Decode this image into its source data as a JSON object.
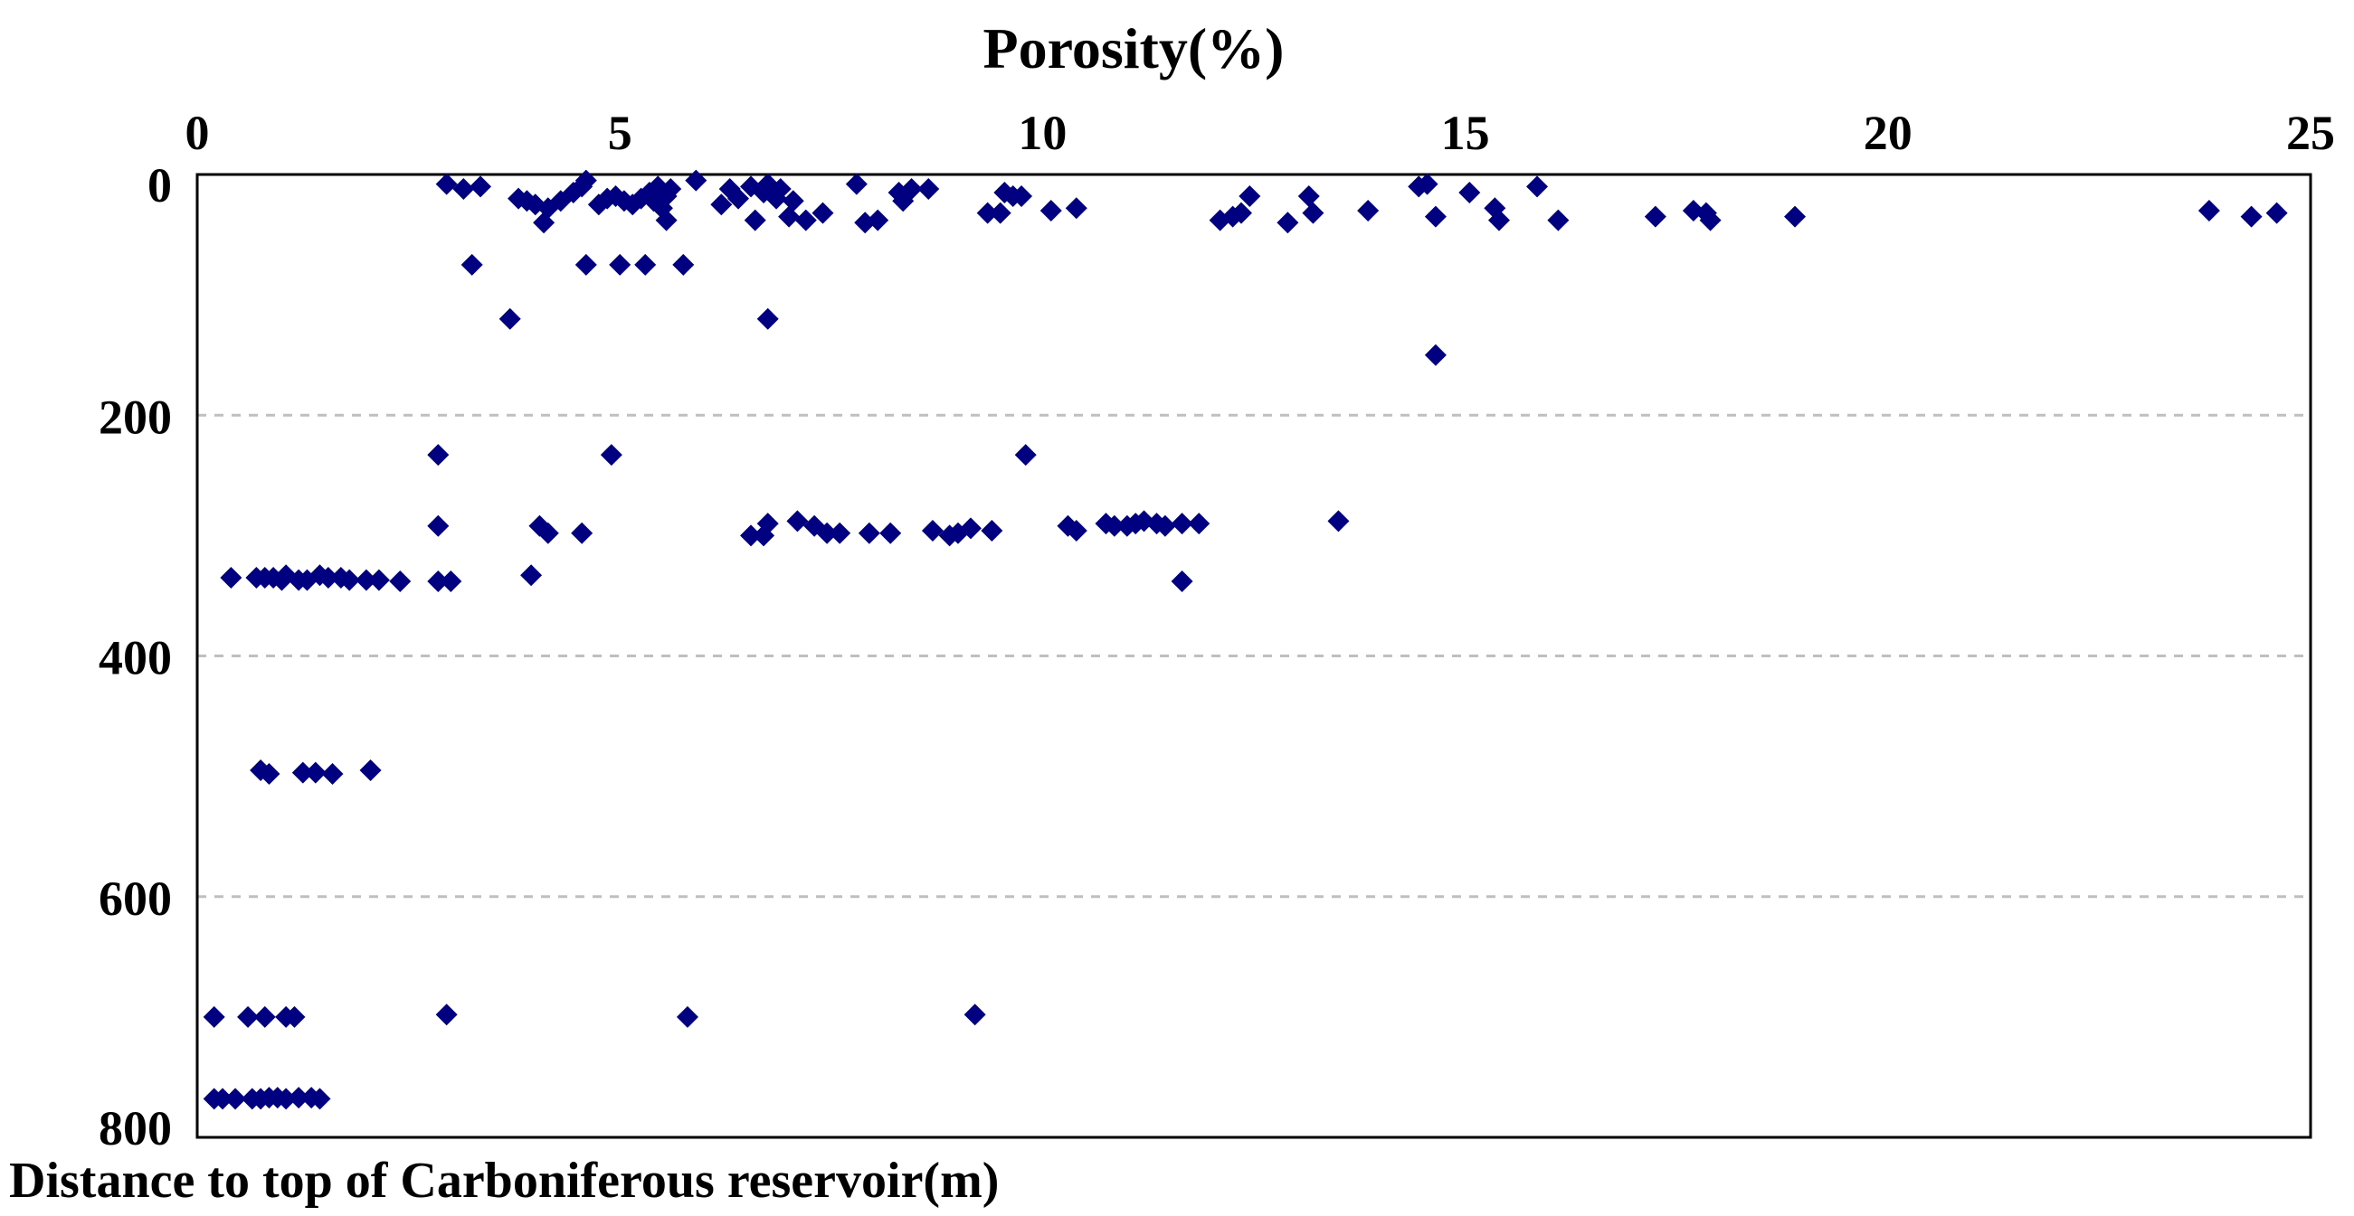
{
  "chart_data": {
    "type": "scatter",
    "title": "Porosity(%)",
    "xlabel": "Porosity(%)",
    "ylabel": "Distance to top of Carboniferous reservoir(m)",
    "xlim": [
      0,
      25
    ],
    "ylim": [
      0,
      800
    ],
    "x_axis_position": "top",
    "y_inverted": true,
    "x_ticks": [
      "0",
      "5",
      "10",
      "15",
      "20",
      "25"
    ],
    "y_ticks": [
      "200",
      "400",
      "600",
      "800"
    ],
    "y_tick_values": [
      200,
      400,
      600,
      800
    ],
    "x_tick_values": [
      0,
      5,
      10,
      15,
      20,
      25
    ],
    "grid": "horizontal dashed",
    "marker_color": "#000080",
    "series": [
      {
        "name": "samples",
        "points": [
          [
            2.95,
            8
          ],
          [
            3.15,
            12
          ],
          [
            3.35,
            10
          ],
          [
            3.8,
            20
          ],
          [
            3.9,
            22
          ],
          [
            4.0,
            25
          ],
          [
            4.15,
            28
          ],
          [
            4.1,
            40
          ],
          [
            4.3,
            22
          ],
          [
            4.45,
            15
          ],
          [
            4.55,
            10
          ],
          [
            4.6,
            5
          ],
          [
            4.75,
            25
          ],
          [
            4.85,
            20
          ],
          [
            4.95,
            18
          ],
          [
            5.05,
            22
          ],
          [
            5.15,
            25
          ],
          [
            5.25,
            20
          ],
          [
            5.35,
            15
          ],
          [
            5.4,
            22
          ],
          [
            5.45,
            10
          ],
          [
            5.5,
            28
          ],
          [
            5.55,
            18
          ],
          [
            5.6,
            12
          ],
          [
            5.55,
            38
          ],
          [
            5.9,
            5
          ],
          [
            6.2,
            25
          ],
          [
            6.3,
            12
          ],
          [
            6.4,
            20
          ],
          [
            6.55,
            10
          ],
          [
            6.6,
            38
          ],
          [
            6.7,
            15
          ],
          [
            6.75,
            8
          ],
          [
            6.85,
            20
          ],
          [
            6.9,
            12
          ],
          [
            7.0,
            35
          ],
          [
            7.05,
            22
          ],
          [
            7.2,
            38
          ],
          [
            7.4,
            32
          ],
          [
            7.8,
            8
          ],
          [
            7.9,
            40
          ],
          [
            8.05,
            38
          ],
          [
            8.3,
            15
          ],
          [
            8.35,
            22
          ],
          [
            8.45,
            12
          ],
          [
            8.65,
            12
          ],
          [
            9.35,
            32
          ],
          [
            9.5,
            32
          ],
          [
            9.55,
            15
          ],
          [
            9.65,
            18
          ],
          [
            9.75,
            18
          ],
          [
            10.1,
            30
          ],
          [
            10.4,
            28
          ],
          [
            12.1,
            38
          ],
          [
            12.25,
            35
          ],
          [
            12.35,
            32
          ],
          [
            12.45,
            18
          ],
          [
            12.9,
            40
          ],
          [
            13.15,
            18
          ],
          [
            13.2,
            32
          ],
          [
            13.85,
            30
          ],
          [
            14.45,
            10
          ],
          [
            14.55,
            8
          ],
          [
            14.65,
            35
          ],
          [
            15.05,
            15
          ],
          [
            15.35,
            28
          ],
          [
            15.4,
            38
          ],
          [
            15.85,
            10
          ],
          [
            16.1,
            38
          ],
          [
            17.25,
            35
          ],
          [
            17.7,
            30
          ],
          [
            17.85,
            32
          ],
          [
            17.9,
            38
          ],
          [
            18.9,
            35
          ],
          [
            23.8,
            30
          ],
          [
            24.3,
            35
          ],
          [
            24.6,
            32
          ],
          [
            3.25,
            75
          ],
          [
            4.6,
            75
          ],
          [
            5.0,
            75
          ],
          [
            5.3,
            75
          ],
          [
            5.75,
            75
          ],
          [
            3.7,
            120
          ],
          [
            6.75,
            120
          ],
          [
            14.65,
            150
          ],
          [
            2.85,
            233
          ],
          [
            4.9,
            233
          ],
          [
            9.8,
            233
          ],
          [
            2.85,
            292
          ],
          [
            4.05,
            292
          ],
          [
            4.15,
            298
          ],
          [
            4.55,
            298
          ],
          [
            6.55,
            300
          ],
          [
            6.7,
            300
          ],
          [
            6.75,
            290
          ],
          [
            7.1,
            288
          ],
          [
            7.3,
            292
          ],
          [
            7.45,
            298
          ],
          [
            7.6,
            298
          ],
          [
            7.95,
            298
          ],
          [
            8.2,
            298
          ],
          [
            8.7,
            296
          ],
          [
            8.9,
            300
          ],
          [
            9.0,
            298
          ],
          [
            9.15,
            294
          ],
          [
            9.4,
            296
          ],
          [
            10.3,
            292
          ],
          [
            10.4,
            296
          ],
          [
            10.75,
            290
          ],
          [
            10.85,
            292
          ],
          [
            11.0,
            292
          ],
          [
            11.1,
            290
          ],
          [
            11.2,
            288
          ],
          [
            11.35,
            290
          ],
          [
            11.45,
            292
          ],
          [
            11.65,
            290
          ],
          [
            11.85,
            290
          ],
          [
            13.5,
            288
          ],
          [
            11.65,
            338
          ],
          [
            0.4,
            335
          ],
          [
            0.7,
            335
          ],
          [
            0.8,
            335
          ],
          [
            0.9,
            335
          ],
          [
            1.0,
            337
          ],
          [
            1.05,
            333
          ],
          [
            1.2,
            337
          ],
          [
            1.3,
            337
          ],
          [
            1.45,
            333
          ],
          [
            1.55,
            335
          ],
          [
            1.7,
            335
          ],
          [
            1.8,
            337
          ],
          [
            2.0,
            337
          ],
          [
            2.15,
            337
          ],
          [
            2.4,
            338
          ],
          [
            2.85,
            338
          ],
          [
            3.0,
            338
          ],
          [
            3.95,
            333
          ],
          [
            0.75,
            495
          ],
          [
            0.85,
            498
          ],
          [
            1.25,
            497
          ],
          [
            1.4,
            497
          ],
          [
            1.6,
            498
          ],
          [
            2.05,
            495
          ],
          [
            0.2,
            700
          ],
          [
            0.6,
            700
          ],
          [
            0.8,
            700
          ],
          [
            1.05,
            700
          ],
          [
            1.15,
            700
          ],
          [
            2.95,
            698
          ],
          [
            5.8,
            700
          ],
          [
            9.2,
            698
          ],
          [
            0.2,
            768
          ],
          [
            0.3,
            768
          ],
          [
            0.45,
            768
          ],
          [
            0.65,
            768
          ],
          [
            0.75,
            768
          ],
          [
            0.85,
            767
          ],
          [
            0.95,
            767
          ],
          [
            1.05,
            768
          ],
          [
            1.2,
            767
          ],
          [
            1.35,
            767
          ],
          [
            1.45,
            768
          ]
        ]
      }
    ]
  }
}
